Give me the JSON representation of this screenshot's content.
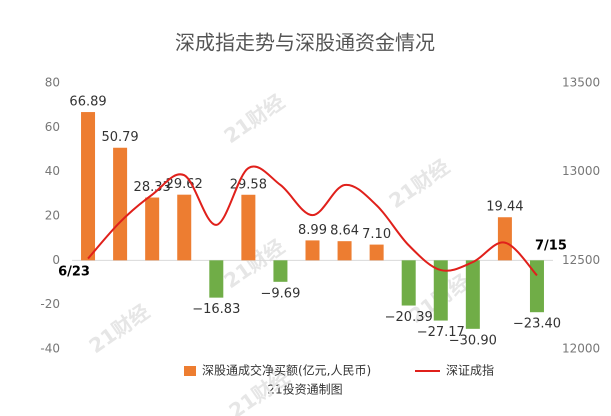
{
  "chart_data": {
    "type": "bar-line",
    "title": "深成指走势与深股通资金情况",
    "footnote": "21投资通制图",
    "watermark": "21财经",
    "categories": [
      "6/23",
      null,
      null,
      null,
      null,
      null,
      null,
      null,
      null,
      null,
      null,
      null,
      null,
      null,
      "7/15"
    ],
    "series": [
      {
        "name": "深股通成交净买额(亿元,人民币)",
        "type": "bar",
        "color": "#ED7D31",
        "negative_color": "#70AD47",
        "values": [
          66.89,
          50.79,
          28.33,
          29.62,
          -16.83,
          29.58,
          -9.69,
          8.99,
          8.64,
          7.1,
          -20.39,
          -27.17,
          -30.9,
          19.44,
          -23.4
        ],
        "value_labels": [
          "66.89",
          "50.79",
          "28.33",
          "29.62",
          "−16.83",
          "29.58",
          "−9.69",
          "8.99",
          "8.64",
          "7.10",
          "−20.39",
          "−27.17",
          "−30.90",
          "19.44",
          "−23.40"
        ]
      },
      {
        "name": "深证成指",
        "type": "line",
        "axis": "y2",
        "color": "#E0201B",
        "values": [
          12510,
          12716,
          12870,
          12980,
          12700,
          13020,
          12925,
          12755,
          12925,
          12810,
          12585,
          12445,
          12490,
          12600,
          12415
        ]
      }
    ],
    "ylim": [
      -40,
      80
    ],
    "yticks": [
      -40,
      -20,
      0,
      20,
      40,
      60,
      80
    ],
    "y2lim": [
      12000,
      13500
    ],
    "y2ticks": [
      12000,
      12500,
      13000,
      13500
    ],
    "legend": "bottom",
    "grid": false
  }
}
